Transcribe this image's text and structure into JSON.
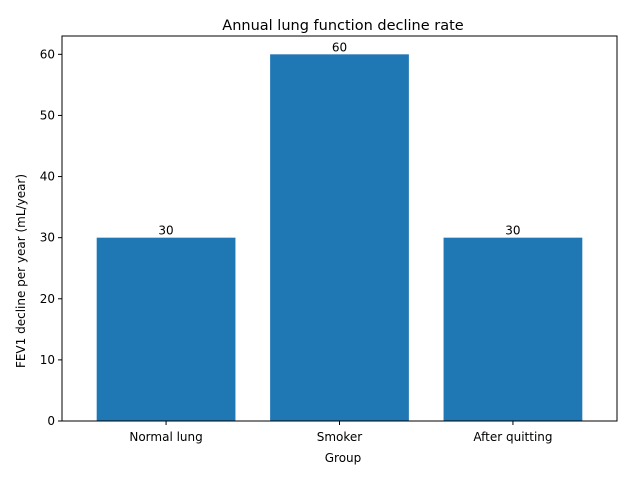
{
  "chart_data": {
    "type": "bar",
    "title": "Annual lung function decline rate",
    "xlabel": "Group",
    "ylabel": "FEV1 decline per year (mL/year)",
    "categories": [
      "Normal lung",
      "Smoker",
      "After quitting"
    ],
    "values": [
      30,
      60,
      30
    ],
    "data_labels": [
      "30",
      "60",
      "30"
    ],
    "ylim": [
      0,
      63
    ],
    "yticks": [
      0,
      10,
      20,
      30,
      40,
      50,
      60
    ],
    "grid": false,
    "legend": "none",
    "bar_color": "#1f77b4"
  }
}
